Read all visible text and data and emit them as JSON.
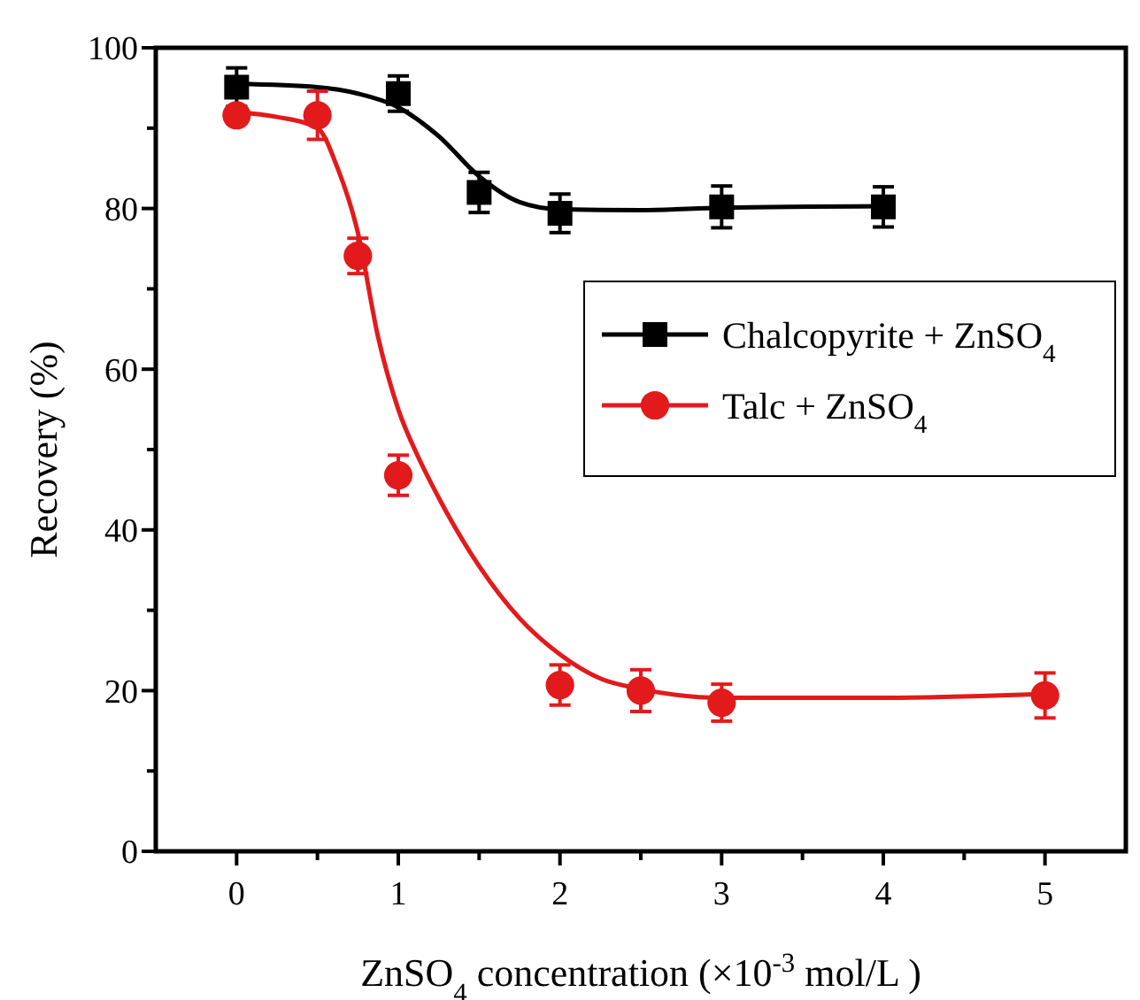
{
  "chart_data": {
    "type": "scatter",
    "xlabel": "ZnSO$_{4}$ concentration (×10$^{-3}$ mol/L )",
    "ylabel": "Recovery (%)",
    "xlim": [
      -0.5,
      5.5
    ],
    "xticks": [
      0,
      {
        "value": 0.5,
        "label": null
      },
      1,
      {
        "value": 1.5,
        "label": null
      },
      2,
      {
        "value": 2.5,
        "label": null
      },
      3,
      {
        "value": 3.5,
        "label": null
      },
      4,
      {
        "value": 4.5,
        "label": null
      },
      5
    ],
    "ylim": [
      0,
      100
    ],
    "yticks": [
      0,
      {
        "value": 10,
        "label": null
      },
      20,
      {
        "value": 30,
        "label": null
      },
      40,
      {
        "value": 50,
        "label": null
      },
      60,
      {
        "value": 70,
        "label": null
      },
      80,
      {
        "value": 90,
        "label": null
      },
      100
    ],
    "grid": false,
    "legend": "right",
    "marker": "square",
    "series": [
      {
        "type": "line",
        "color": "#000000",
        "marker": "none",
        "x": [
          0,
          0.5,
          0.75,
          1,
          1.25,
          1.5,
          1.75,
          2,
          2.5,
          3,
          4
        ],
        "values": [
          95.5,
          95.1,
          94.3,
          92.6,
          89,
          84,
          80.8,
          79.9,
          79.8,
          80.1,
          80.3
        ]
      },
      {
        "type": "line",
        "color": "#e31a1c",
        "marker": "none",
        "x": [
          0,
          0.25,
          0.5,
          0.625,
          0.75,
          0.875,
          1,
          1.125,
          1.25,
          1.5,
          1.75,
          2,
          2.25,
          2.5,
          3,
          4,
          5
        ],
        "values": [
          92,
          91.4,
          90,
          85,
          77,
          64,
          55,
          49,
          44,
          35.5,
          29,
          24.5,
          21.5,
          20.2,
          19.1,
          19.1,
          19.6
        ]
      },
      {
        "name": "Chalcopyrite + ZnSO$_{4}$",
        "color": "#000000",
        "x": [
          0,
          1,
          1.5,
          2,
          3,
          4
        ],
        "values": [
          95.1,
          94.3,
          82,
          79.4,
          80.2,
          80.2
        ],
        "errors": [
          2.4,
          2.2,
          2.5,
          2.4,
          2.6,
          2.5
        ]
      },
      {
        "name": "Talc + ZnSO$_{4}$",
        "color": "#e31a1c",
        "marker": "circle",
        "x": [
          0,
          0.5,
          0.75,
          1,
          2,
          2.5,
          3,
          5
        ],
        "values": [
          91.6,
          91.6,
          74.1,
          46.8,
          20.7,
          20,
          18.5,
          19.4
        ],
        "errors": [
          1,
          3,
          2.2,
          2.5,
          2.5,
          2.6,
          2.3,
          2.8
        ]
      }
    ]
  }
}
